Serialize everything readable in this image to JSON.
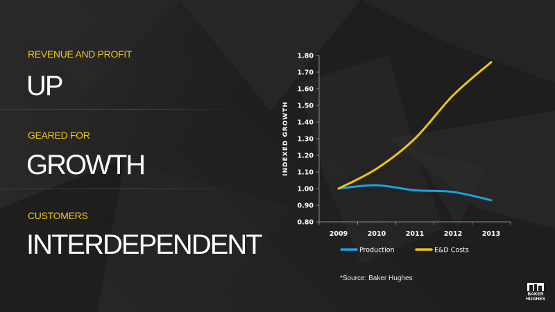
{
  "sections": [
    {
      "kicker": "REVENUE AND PROFIT",
      "headline": "UP"
    },
    {
      "kicker": "GEARED FOR",
      "headline": "GROWTH"
    },
    {
      "kicker": "CUSTOMERS",
      "headline": "INTERDEPENDENT"
    }
  ],
  "source_note": "*Source: Baker Hughes",
  "logo": {
    "line1": "BAKER",
    "line2": "HUGHES"
  },
  "colors": {
    "accent": "#f2c413",
    "production": "#1aa3df",
    "ed_costs": "#f2c413"
  },
  "chart_data": {
    "type": "line",
    "x": [
      2009,
      2010,
      2011,
      2012,
      2013
    ],
    "series": [
      {
        "name": "Production",
        "values": [
          1.0,
          1.02,
          0.99,
          0.98,
          0.93
        ]
      },
      {
        "name": "E&D Costs",
        "values": [
          1.0,
          1.12,
          1.3,
          1.56,
          1.76
        ]
      }
    ],
    "title": "",
    "xlabel": "",
    "ylabel": "INDEXED GROWTH",
    "ylim": [
      0.8,
      1.8
    ],
    "yticks": [
      "0.80",
      "0.90",
      "1.00",
      "1.10",
      "1.20",
      "1.30",
      "1.40",
      "1.50",
      "1.60",
      "1.70",
      "1.80"
    ],
    "xticks": [
      "2009",
      "2010",
      "2011",
      "2012",
      "2013"
    ],
    "grid": false,
    "legend": "bottom"
  }
}
